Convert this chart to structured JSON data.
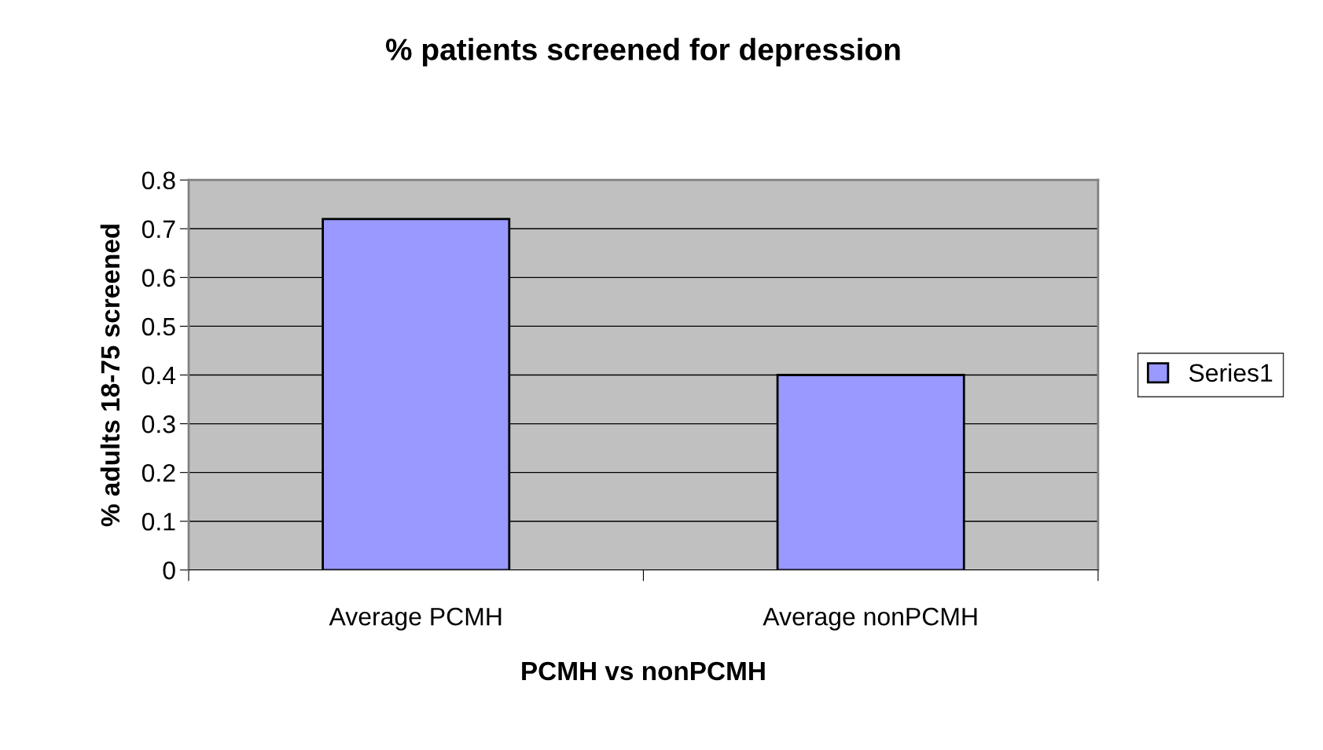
{
  "chart_data": {
    "type": "bar",
    "title": "% patients screened for depression",
    "xlabel": "PCMH vs nonPCMH",
    "ylabel": "% adults 18-75 screened",
    "categories": [
      "Average PCMH",
      "Average nonPCMH"
    ],
    "series": [
      {
        "name": "Series1",
        "color": "#9999ff",
        "values": [
          0.72,
          0.4
        ]
      }
    ],
    "ylim": [
      0,
      0.8
    ],
    "yticks": [
      0,
      0.1,
      0.2,
      0.3,
      0.4,
      0.5,
      0.6,
      0.7,
      0.8
    ],
    "grid": "y",
    "legend": "right"
  }
}
